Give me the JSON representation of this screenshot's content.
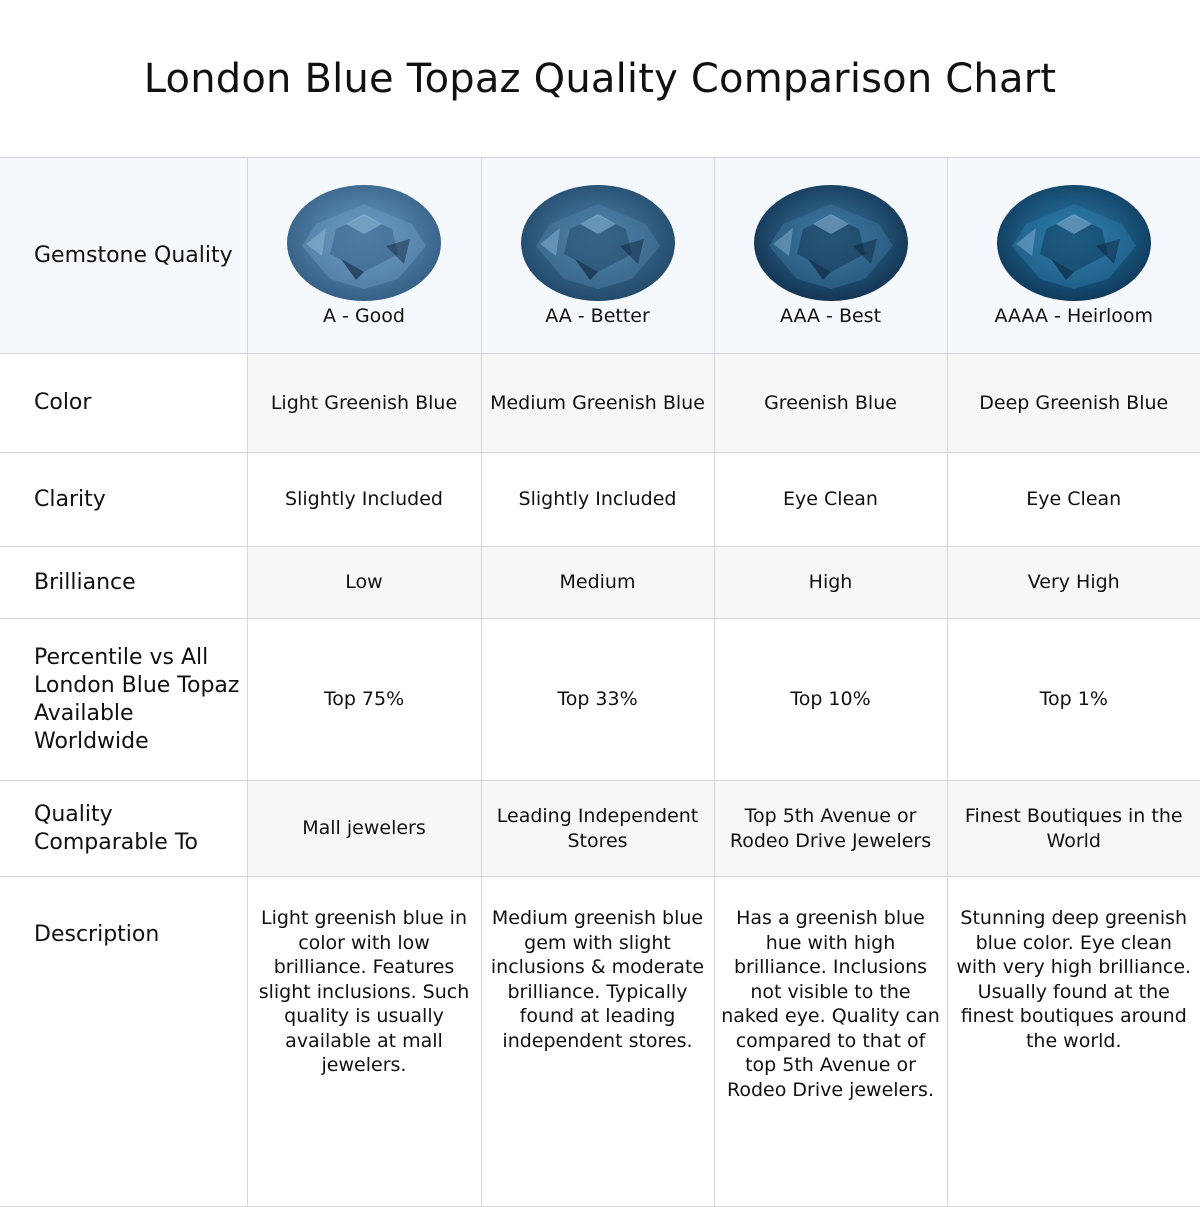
{
  "title": "London Blue Topaz Quality Comparison Chart",
  "rows": {
    "quality": {
      "label": "Gemstone Quality",
      "values": [
        "A - Good",
        "AA - Better",
        "AAA - Best",
        "AAAA - Heirloom"
      ]
    },
    "color": {
      "label": "Color",
      "values": [
        "Light Greenish Blue",
        "Medium Greenish Blue",
        "Greenish Blue",
        "Deep Greenish Blue"
      ]
    },
    "clarity": {
      "label": "Clarity",
      "values": [
        "Slightly Included",
        "Slightly Included",
        "Eye Clean",
        "Eye Clean"
      ]
    },
    "brilliance": {
      "label": "Brilliance",
      "values": [
        "Low",
        "Medium",
        "High",
        "Very High"
      ]
    },
    "percentile": {
      "label": "Percentile vs All London Blue Topaz Available Worldwide",
      "values": [
        "Top 75%",
        "Top 33%",
        "Top 10%",
        "Top 1%"
      ]
    },
    "comparable": {
      "label": "Quality Comparable To",
      "values": [
        "Mall jewelers",
        "Leading Independent Stores",
        "Top 5th Avenue or Rodeo Drive Jewelers",
        "Finest Boutiques in the World"
      ]
    },
    "description": {
      "label": "Description",
      "values": [
        "Light greenish blue in color with low brilliance. Features slight inclusions. Such quality is usually available at mall jewelers.",
        "Medium greenish blue gem with slight inclusions & moderate brilliance. Typically found at leading independent stores.",
        "Has a greenish blue hue with high brilliance. Inclusions not visible to the naked eye. Quality can compared to that of top 5th Avenue or Rodeo Drive jewelers.",
        "Stunning deep greenish blue color. Eye clean with very high brilliance. Usually found at the finest boutiques around the world."
      ]
    }
  },
  "gems": [
    {
      "icon": "oval-gem-icon",
      "light": "#6e9cc4",
      "dark": "#2f5a80"
    },
    {
      "icon": "oval-gem-icon",
      "light": "#4f82a8",
      "dark": "#1e4566"
    },
    {
      "icon": "oval-gem-icon",
      "light": "#3d7aa3",
      "dark": "#0f2f4c"
    },
    {
      "icon": "oval-gem-icon",
      "light": "#2f7fae",
      "dark": "#0c3556"
    }
  ]
}
